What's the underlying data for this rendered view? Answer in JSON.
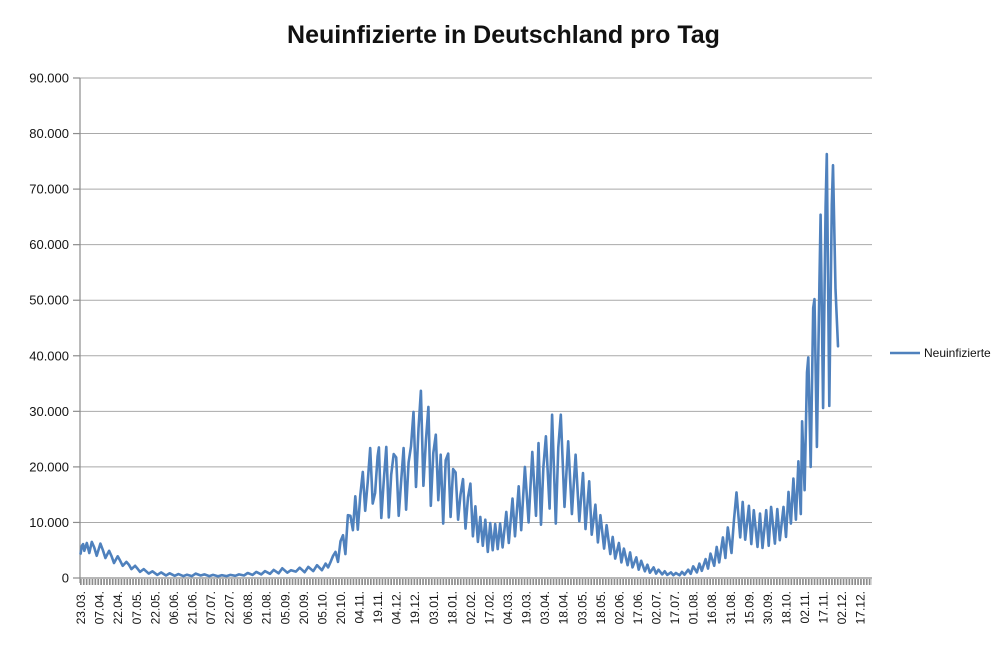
{
  "title": "Neuinfizierte in Deutschland pro Tag",
  "legend": {
    "label": "Neuinfizierte"
  },
  "colors": {
    "series_line": "#4F81BD",
    "gridline": "#A9A9A9",
    "axis": "#8C8C8C",
    "tick_strip": "#8C8C8C",
    "text": "#141414",
    "background": "#FFFFFF"
  },
  "chart_data": {
    "type": "line",
    "title": "Neuinfizierte in Deutschland pro Tag",
    "xlabel": "",
    "ylabel": "",
    "ylim": [
      0,
      90000
    ],
    "ytick_step": 10000,
    "ytick_labels": [
      "0",
      "10.000",
      "20.000",
      "30.000",
      "40.000",
      "50.000",
      "60.000",
      "70.000",
      "80.000",
      "90.000"
    ],
    "grid": "horizontal",
    "legend_position": "right",
    "label_every_n_days": 15,
    "total_days": 640,
    "x_tick_labels": [
      "23.03.",
      "07.04.",
      "22.04.",
      "07.05.",
      "22.05.",
      "06.06.",
      "21.06.",
      "07.07.",
      "22.07.",
      "06.08.",
      "21.08.",
      "05.09.",
      "20.09.",
      "05.10.",
      "20.10.",
      "04.11.",
      "19.11.",
      "04.12.",
      "19.12.",
      "03.01.",
      "18.01.",
      "02.02.",
      "17.02.",
      "04.03.",
      "19.03.",
      "03.04.",
      "18.04.",
      "03.05.",
      "18.05.",
      "02.06.",
      "17.06.",
      "02.07.",
      "17.07.",
      "01.08.",
      "16.08.",
      "31.08.",
      "15.09.",
      "30.09.",
      "18.10.",
      "02.11.",
      "17.11.",
      "02.12.",
      "17.12."
    ],
    "series": [
      {
        "name": "Neuinfizierte",
        "color": "#4F81BD",
        "points": [
          [
            0,
            4400
          ],
          [
            1,
            5800
          ],
          [
            2,
            6100
          ],
          [
            3,
            4900
          ],
          [
            5,
            6300
          ],
          [
            7,
            4500
          ],
          [
            9,
            6500
          ],
          [
            11,
            5500
          ],
          [
            13,
            4000
          ],
          [
            16,
            6200
          ],
          [
            18,
            5000
          ],
          [
            20,
            3600
          ],
          [
            23,
            4900
          ],
          [
            25,
            3900
          ],
          [
            27,
            2700
          ],
          [
            30,
            3900
          ],
          [
            32,
            3100
          ],
          [
            34,
            2200
          ],
          [
            37,
            2900
          ],
          [
            39,
            2400
          ],
          [
            41,
            1600
          ],
          [
            44,
            2200
          ],
          [
            46,
            1700
          ],
          [
            48,
            1100
          ],
          [
            51,
            1600
          ],
          [
            53,
            1200
          ],
          [
            55,
            800
          ],
          [
            58,
            1200
          ],
          [
            62,
            550
          ],
          [
            65,
            1000
          ],
          [
            69,
            450
          ],
          [
            72,
            850
          ],
          [
            76,
            400
          ],
          [
            79,
            700
          ],
          [
            83,
            350
          ],
          [
            86,
            600
          ],
          [
            90,
            350
          ],
          [
            93,
            800
          ],
          [
            97,
            450
          ],
          [
            100,
            650
          ],
          [
            104,
            350
          ],
          [
            107,
            550
          ],
          [
            111,
            300
          ],
          [
            114,
            500
          ],
          [
            118,
            350
          ],
          [
            121,
            550
          ],
          [
            125,
            400
          ],
          [
            128,
            650
          ],
          [
            132,
            450
          ],
          [
            135,
            900
          ],
          [
            139,
            550
          ],
          [
            142,
            1100
          ],
          [
            146,
            650
          ],
          [
            149,
            1250
          ],
          [
            153,
            750
          ],
          [
            156,
            1450
          ],
          [
            160,
            850
          ],
          [
            163,
            1750
          ],
          [
            167,
            950
          ],
          [
            170,
            1400
          ],
          [
            174,
            1150
          ],
          [
            177,
            1850
          ],
          [
            181,
            1050
          ],
          [
            184,
            2000
          ],
          [
            188,
            1250
          ],
          [
            191,
            2300
          ],
          [
            195,
            1400
          ],
          [
            198,
            2600
          ],
          [
            200,
            1900
          ],
          [
            202,
            2900
          ],
          [
            204,
            4000
          ],
          [
            206,
            4700
          ],
          [
            208,
            2900
          ],
          [
            210,
            6600
          ],
          [
            212,
            7700
          ],
          [
            214,
            4300
          ],
          [
            216,
            11300
          ],
          [
            218,
            11200
          ],
          [
            220,
            8600
          ],
          [
            222,
            14700
          ],
          [
            224,
            8700
          ],
          [
            226,
            14900
          ],
          [
            228,
            19100
          ],
          [
            230,
            12100
          ],
          [
            232,
            17200
          ],
          [
            234,
            23400
          ],
          [
            236,
            13400
          ],
          [
            238,
            15300
          ],
          [
            240,
            21900
          ],
          [
            241,
            23500
          ],
          [
            243,
            10800
          ],
          [
            245,
            17600
          ],
          [
            247,
            23600
          ],
          [
            249,
            10900
          ],
          [
            251,
            18600
          ],
          [
            253,
            22300
          ],
          [
            255,
            21700
          ],
          [
            257,
            11200
          ],
          [
            259,
            17300
          ],
          [
            261,
            23400
          ],
          [
            263,
            12300
          ],
          [
            265,
            20800
          ],
          [
            267,
            23700
          ],
          [
            269,
            29900
          ],
          [
            271,
            16400
          ],
          [
            273,
            26900
          ],
          [
            275,
            33700
          ],
          [
            277,
            16600
          ],
          [
            279,
            24700
          ],
          [
            281,
            30800
          ],
          [
            283,
            13000
          ],
          [
            285,
            22500
          ],
          [
            287,
            25800
          ],
          [
            289,
            14000
          ],
          [
            291,
            22200
          ],
          [
            293,
            9800
          ],
          [
            295,
            21200
          ],
          [
            297,
            22400
          ],
          [
            299,
            11000
          ],
          [
            301,
            19600
          ],
          [
            303,
            19000
          ],
          [
            305,
            10500
          ],
          [
            307,
            15000
          ],
          [
            309,
            17800
          ],
          [
            311,
            8900
          ],
          [
            313,
            14500
          ],
          [
            315,
            17000
          ],
          [
            317,
            7500
          ],
          [
            319,
            12900
          ],
          [
            321,
            6500
          ],
          [
            323,
            11000
          ],
          [
            325,
            5800
          ],
          [
            327,
            10500
          ],
          [
            329,
            4700
          ],
          [
            331,
            9900
          ],
          [
            333,
            5000
          ],
          [
            335,
            9700
          ],
          [
            337,
            5200
          ],
          [
            339,
            9800
          ],
          [
            341,
            5500
          ],
          [
            344,
            11900
          ],
          [
            346,
            6300
          ],
          [
            349,
            14300
          ],
          [
            351,
            7500
          ],
          [
            354,
            16500
          ],
          [
            356,
            8600
          ],
          [
            359,
            20000
          ],
          [
            362,
            10000
          ],
          [
            365,
            22700
          ],
          [
            368,
            11200
          ],
          [
            370,
            24300
          ],
          [
            372,
            9600
          ],
          [
            374,
            20000
          ],
          [
            376,
            25500
          ],
          [
            379,
            12500
          ],
          [
            381,
            29400
          ],
          [
            384,
            9800
          ],
          [
            386,
            23500
          ],
          [
            388,
            29400
          ],
          [
            391,
            12800
          ],
          [
            394,
            24600
          ],
          [
            397,
            11500
          ],
          [
            400,
            22200
          ],
          [
            403,
            10200
          ],
          [
            406,
            18900
          ],
          [
            408,
            8800
          ],
          [
            411,
            17400
          ],
          [
            413,
            7800
          ],
          [
            416,
            13200
          ],
          [
            418,
            6400
          ],
          [
            420,
            11300
          ],
          [
            423,
            5300
          ],
          [
            425,
            9500
          ],
          [
            428,
            4300
          ],
          [
            430,
            7400
          ],
          [
            432,
            3500
          ],
          [
            435,
            6300
          ],
          [
            437,
            2800
          ],
          [
            439,
            5300
          ],
          [
            442,
            2300
          ],
          [
            444,
            4600
          ],
          [
            446,
            1900
          ],
          [
            449,
            3700
          ],
          [
            451,
            1500
          ],
          [
            453,
            3100
          ],
          [
            456,
            1200
          ],
          [
            458,
            2400
          ],
          [
            460,
            950
          ],
          [
            463,
            1900
          ],
          [
            465,
            800
          ],
          [
            467,
            1500
          ],
          [
            470,
            650
          ],
          [
            472,
            1200
          ],
          [
            474,
            550
          ],
          [
            477,
            1000
          ],
          [
            479,
            500
          ],
          [
            481,
            900
          ],
          [
            484,
            480
          ],
          [
            486,
            1100
          ],
          [
            488,
            600
          ],
          [
            491,
            1500
          ],
          [
            493,
            750
          ],
          [
            495,
            2100
          ],
          [
            498,
            1000
          ],
          [
            500,
            2600
          ],
          [
            502,
            1300
          ],
          [
            505,
            3400
          ],
          [
            507,
            1700
          ],
          [
            509,
            4400
          ],
          [
            512,
            2200
          ],
          [
            514,
            5600
          ],
          [
            516,
            2800
          ],
          [
            519,
            7300
          ],
          [
            521,
            3600
          ],
          [
            523,
            9100
          ],
          [
            526,
            4500
          ],
          [
            528,
            10500
          ],
          [
            530,
            15400
          ],
          [
            533,
            7300
          ],
          [
            535,
            13700
          ],
          [
            537,
            6900
          ],
          [
            540,
            13000
          ],
          [
            542,
            6100
          ],
          [
            544,
            12200
          ],
          [
            547,
            5600
          ],
          [
            549,
            11600
          ],
          [
            551,
            5400
          ],
          [
            554,
            12200
          ],
          [
            556,
            5800
          ],
          [
            558,
            12800
          ],
          [
            561,
            6200
          ],
          [
            563,
            12400
          ],
          [
            565,
            6800
          ],
          [
            568,
            12800
          ],
          [
            570,
            7400
          ],
          [
            572,
            15500
          ],
          [
            574,
            9800
          ],
          [
            576,
            17900
          ],
          [
            578,
            10500
          ],
          [
            580,
            21000
          ],
          [
            582,
            11500
          ],
          [
            583,
            28200
          ],
          [
            585,
            15800
          ],
          [
            587,
            37000
          ],
          [
            588,
            39700
          ],
          [
            590,
            20000
          ],
          [
            592,
            48600
          ],
          [
            593,
            50200
          ],
          [
            595,
            23600
          ],
          [
            597,
            52800
          ],
          [
            598,
            65400
          ],
          [
            600,
            30600
          ],
          [
            602,
            66900
          ],
          [
            603,
            76300
          ],
          [
            605,
            31000
          ],
          [
            607,
            67200
          ],
          [
            608,
            74300
          ],
          [
            610,
            52000
          ],
          [
            612,
            41700
          ]
        ]
      }
    ]
  }
}
